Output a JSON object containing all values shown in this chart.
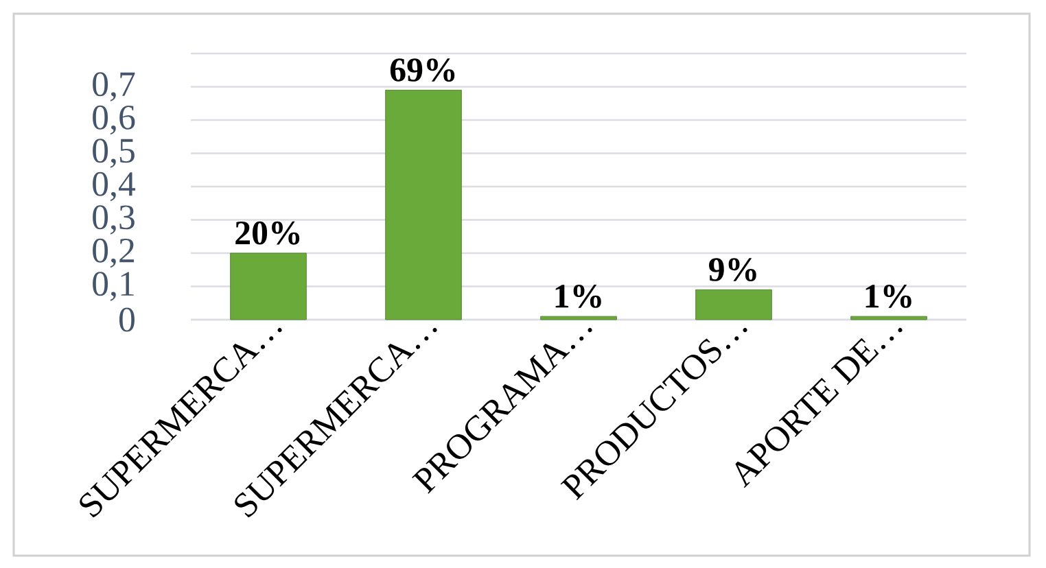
{
  "chart_data": {
    "type": "bar",
    "categories": [
      "SUPERMERCA…",
      "SUPERMERCA…",
      "PROGRAMA…",
      "PRODUCTOS…",
      "APORTE DE…"
    ],
    "values": [
      0.2,
      0.69,
      0.01,
      0.09,
      0.01
    ],
    "value_labels": [
      "20%",
      "69%",
      "1%",
      "9%",
      "1%"
    ],
    "color": "#6aaa3a",
    "ylim": [
      0,
      0.8
    ],
    "yticks": [
      0,
      {
        "value": 0.1,
        "label": "0,1"
      },
      {
        "value": 0.2,
        "label": "0,2"
      },
      {
        "value": 0.3,
        "label": "0,3"
      },
      {
        "value": 0.4,
        "label": "0,4"
      },
      {
        "value": 0.5,
        "label": "0,5"
      },
      {
        "value": 0.6,
        "label": "0,6"
      },
      {
        "value": 0.7,
        "label": "0,7"
      },
      {
        "value": 0.8,
        "label": null
      }
    ],
    "grid": "y"
  }
}
